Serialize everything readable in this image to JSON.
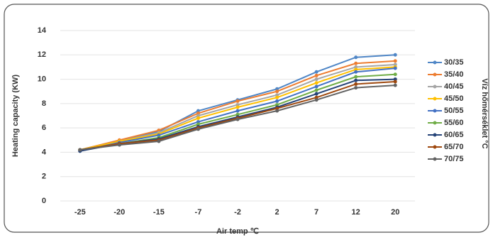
{
  "chart_data": {
    "type": "line",
    "categories": [
      "-25",
      "-20",
      "-15",
      "-7",
      "-2",
      "2",
      "7",
      "12",
      "20"
    ],
    "x_label": "Air temp ℃",
    "y_label": "Heating capacity (KW)",
    "legend_title": "Víz hőmérséklet °C",
    "legend_position": "right",
    "ylim": [
      0,
      14
    ],
    "yticks": [
      0,
      2,
      4,
      6,
      8,
      10,
      12,
      14
    ],
    "grid": true,
    "series": [
      {
        "name": "30/35",
        "color": "#4f86c6",
        "values": [
          4.1,
          4.9,
          5.7,
          7.4,
          8.3,
          9.2,
          10.6,
          11.8,
          12.0
        ]
      },
      {
        "name": "35/40",
        "color": "#ed7d31",
        "values": [
          4.2,
          5.0,
          5.8,
          7.2,
          8.2,
          9.0,
          10.3,
          11.3,
          11.5
        ]
      },
      {
        "name": "40/45",
        "color": "#a5a5a5",
        "values": [
          4.2,
          4.9,
          5.6,
          7.0,
          7.9,
          8.7,
          10.0,
          11.0,
          11.2
        ]
      },
      {
        "name": "45/50",
        "color": "#ffc000",
        "values": [
          4.2,
          4.9,
          5.5,
          6.8,
          7.7,
          8.5,
          9.7,
          10.8,
          11.0
        ]
      },
      {
        "name": "50/55",
        "color": "#4472c4",
        "values": [
          4.1,
          4.8,
          5.4,
          6.5,
          7.4,
          8.2,
          9.4,
          10.6,
          10.9
        ]
      },
      {
        "name": "55/60",
        "color": "#70ad47",
        "values": [
          4.2,
          4.7,
          5.2,
          6.3,
          7.1,
          7.9,
          9.1,
          10.2,
          10.4
        ]
      },
      {
        "name": "60/65",
        "color": "#264478",
        "values": [
          4.1,
          4.7,
          5.1,
          6.1,
          6.9,
          7.7,
          8.8,
          9.9,
          10.0
        ]
      },
      {
        "name": "65/70",
        "color": "#9e480e",
        "values": [
          4.2,
          4.7,
          5.0,
          6.0,
          6.8,
          7.6,
          8.5,
          9.6,
          9.8
        ]
      },
      {
        "name": "70/75",
        "color": "#636363",
        "values": [
          4.2,
          4.6,
          4.9,
          5.9,
          6.7,
          7.4,
          8.3,
          9.3,
          9.5
        ]
      }
    ]
  }
}
